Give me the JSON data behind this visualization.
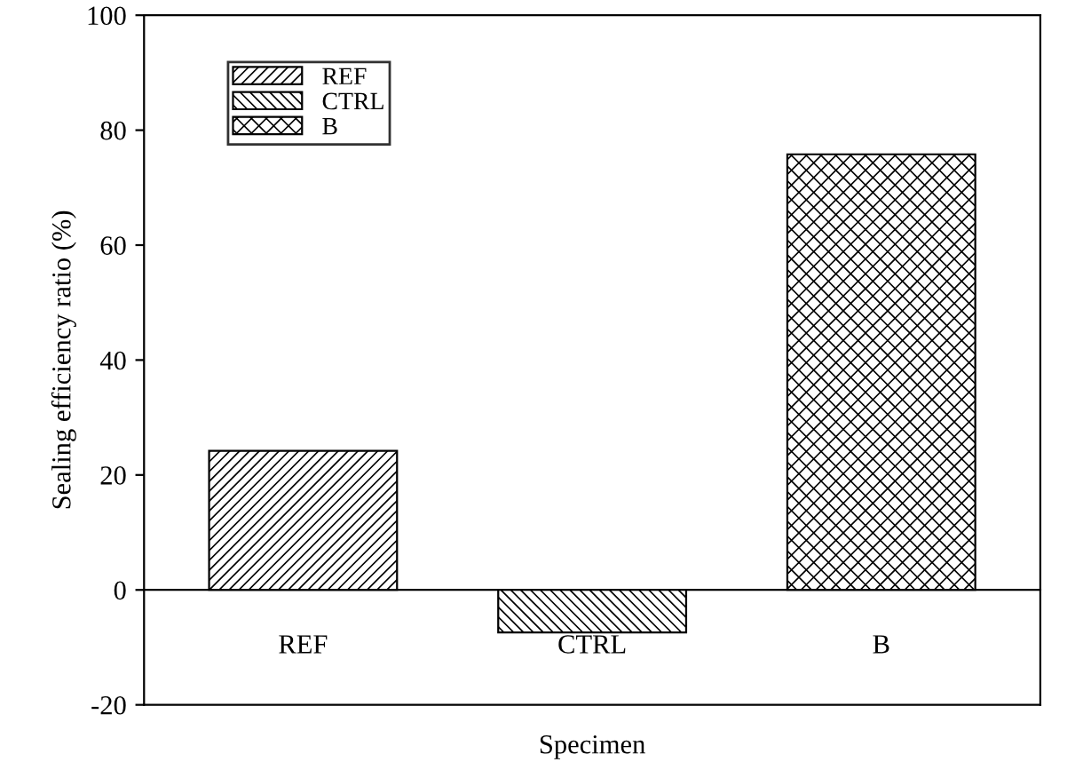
{
  "chart_data": {
    "type": "bar",
    "xlabel": "Specimen",
    "ylabel": "Sealing efficiency ratio (%)",
    "categories": [
      "REF",
      "CTRL",
      "B"
    ],
    "series": [
      {
        "name": "REF",
        "color": "#000000",
        "values": [
          24.2,
          null,
          null
        ]
      },
      {
        "name": "CTRL",
        "color": "#000000",
        "values": [
          null,
          -7.4,
          null
        ]
      },
      {
        "name": "B",
        "color": "#000000",
        "values": [
          null,
          null,
          75.8
        ]
      }
    ],
    "ylim": [
      -20,
      100
    ],
    "yticks": [
      -20,
      0,
      20,
      40,
      60,
      80,
      100
    ],
    "grid": false,
    "legend": "top left"
  }
}
